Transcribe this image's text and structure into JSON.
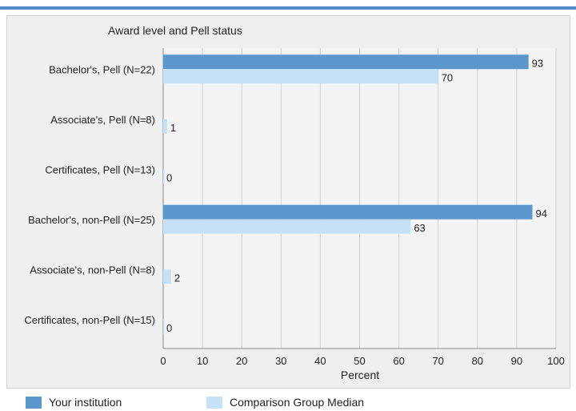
{
  "colors": {
    "accent_rule": "#4f8bc9",
    "panel_background": "#efefef",
    "grid": "#d0d0d0",
    "series_institution": "#5b96cc",
    "series_comparison": "#c6e1f5"
  },
  "chart_data": {
    "type": "bar",
    "orientation": "horizontal",
    "title": "Award level and Pell status",
    "xlabel": "Percent",
    "ylabel": "",
    "xlim": [
      0,
      100
    ],
    "x_ticks": [
      "0",
      "10",
      "20",
      "30",
      "40",
      "50",
      "60",
      "70",
      "80",
      "90",
      "100"
    ],
    "grid": "vertical",
    "legend_position": "bottom",
    "categories": [
      "Bachelor's, Pell (N=22)",
      "Associate's, Pell (N=8)",
      "Certificates, Pell (N=13)",
      "Bachelor's, non-Pell (N=25)",
      "Associate's, non-Pell (N=8)",
      "Certificates, non-Pell (N=15)"
    ],
    "series": [
      {
        "name": "Your institution",
        "color": "#5b96cc",
        "values": [
          93,
          null,
          null,
          94,
          null,
          null
        ]
      },
      {
        "name": "Comparison Group Median",
        "color": "#c6e1f5",
        "values": [
          70,
          1,
          0,
          63,
          2,
          0
        ]
      }
    ]
  }
}
